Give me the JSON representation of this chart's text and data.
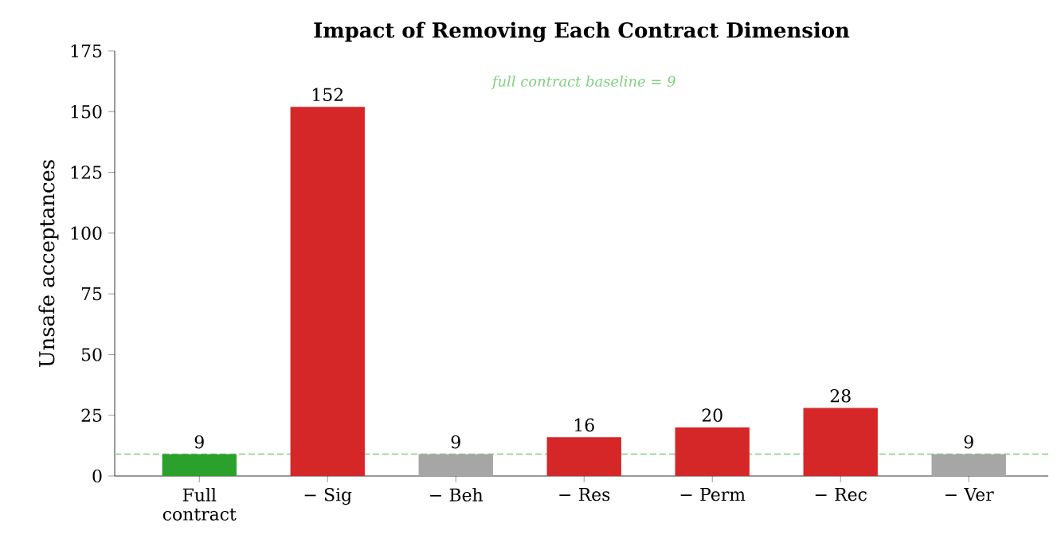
{
  "chart_data": {
    "type": "bar",
    "title": "Impact of Removing Each Contract Dimension",
    "ylabel": "Unsafe acceptances",
    "categories": [
      "Full contract",
      "− Sig",
      "− Beh",
      "− Res",
      "− Perm",
      "− Rec",
      "− Ver"
    ],
    "values": [
      9,
      152,
      9,
      16,
      20,
      28,
      9
    ],
    "colors": [
      "#2ca02c",
      "#d62728",
      "#a6a6a6",
      "#d62728",
      "#d62728",
      "#d62728",
      "#a6a6a6"
    ],
    "data_labels": true,
    "ylim": [
      0,
      175
    ],
    "yticks": [
      0,
      25,
      50,
      75,
      100,
      125,
      150,
      175
    ],
    "ref_lines": [
      {
        "axis": "y",
        "value": 9,
        "label": "full contract baseline = 9",
        "color": "#7fcf7f",
        "line_style": "dashed"
      }
    ],
    "grid": false
  }
}
